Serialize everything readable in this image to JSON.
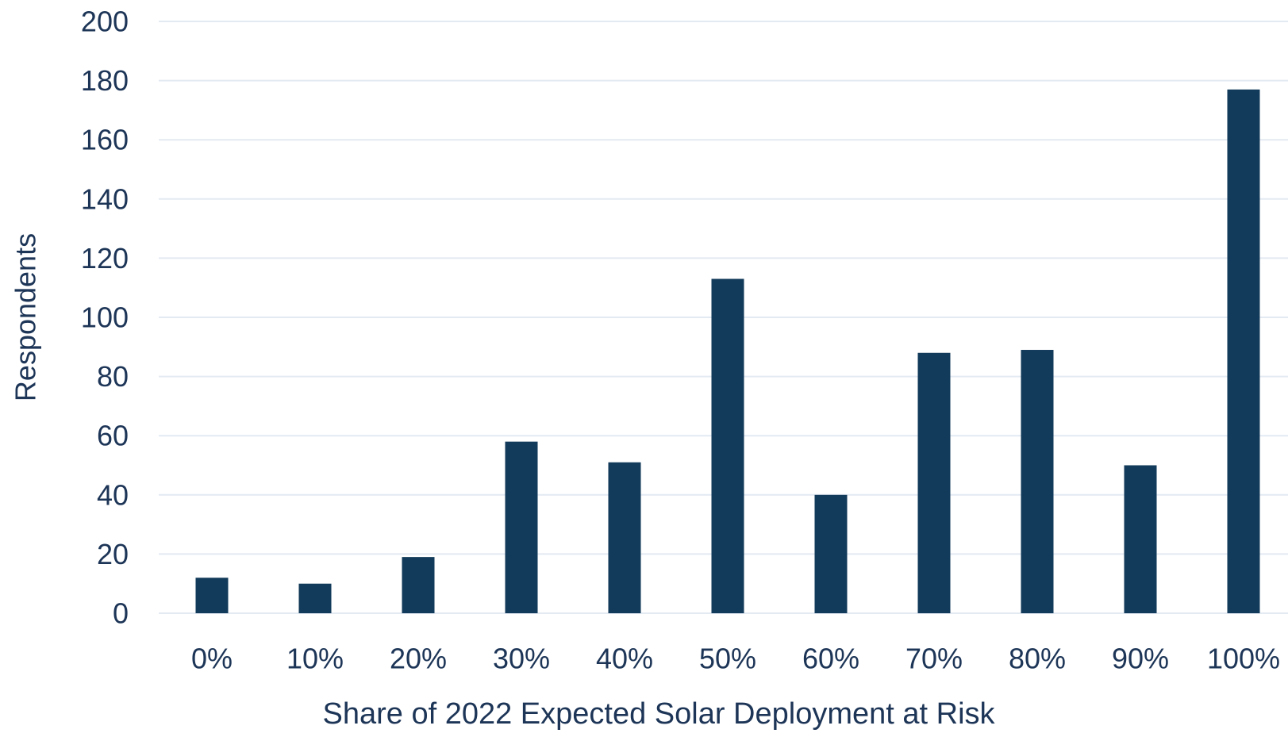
{
  "chart_data": {
    "type": "bar",
    "title": "",
    "xlabel": "Share of 2022 Expected Solar Deployment at Risk",
    "ylabel": "Respondents",
    "categories": [
      "0%",
      "10%",
      "20%",
      "30%",
      "40%",
      "50%",
      "60%",
      "70%",
      "80%",
      "90%",
      "100%"
    ],
    "values": [
      12,
      10,
      19,
      58,
      51,
      113,
      40,
      88,
      89,
      50,
      177
    ],
    "ylim": [
      0,
      200
    ],
    "yticks": [
      "0",
      "20",
      "40",
      "60",
      "80",
      "100",
      "120",
      "140",
      "160",
      "180",
      "200"
    ],
    "grid": "horizontal",
    "legend": "none"
  },
  "colors": {
    "bar": "#123a5a",
    "grid": "#e3eaf2",
    "text": "#1d3557"
  }
}
